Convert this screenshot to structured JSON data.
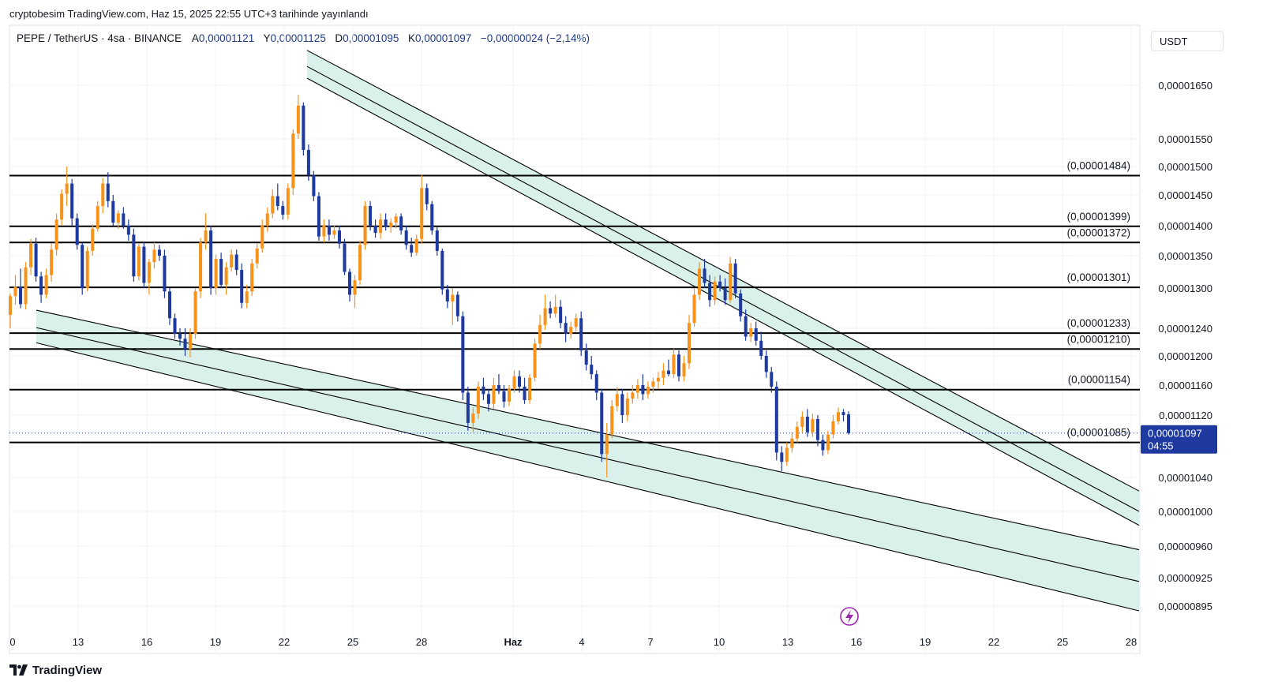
{
  "header": {
    "publish_text": "cryptobesim TradingView.com, Haz 15, 2025 22:55 UTC+3 tarihinde yayınlandı",
    "symbol_text": "PEPE / TetherUS · 4sa · BINANCE",
    "ohlc": {
      "open_label": "A",
      "open_value": "0,00001121",
      "high_label": "Y",
      "high_value": "0,00001125",
      "low_label": "D",
      "low_value": "0,00001095",
      "close_label": "K",
      "close_value": "0,00001097",
      "change_text": "−0,00000024 (−2,14%)"
    },
    "currency": "USDT"
  },
  "footer": {
    "brand": "TradingView"
  },
  "colors": {
    "up": "#f7931a",
    "down": "#1e3aa0",
    "channel_fill": "#d9f1ea",
    "price_tag_bg": "#1e3aa0",
    "level_line": "#000000"
  },
  "chart_data": {
    "type": "candlestick",
    "title": "PEPE / TetherUS · 4sa · BINANCE",
    "x_ticks": [
      "0",
      "13",
      "16",
      "19",
      "22",
      "25",
      "28",
      "Haz",
      "4",
      "7",
      "10",
      "13",
      "16",
      "19",
      "22",
      "25",
      "28"
    ],
    "y_ticks": [
      "0,00001650",
      "0,00001550",
      "0,00001500",
      "0,00001450",
      "0,00001400",
      "0,00001350",
      "0,00001300",
      "0,00001240",
      "0,00001200",
      "0,00001160",
      "0,00001120",
      "0,00001040",
      "0,00001000",
      "0,00000960",
      "0,00000925",
      "0,00000895"
    ],
    "y_tick_values": [
      1650,
      1550,
      1500,
      1450,
      1400,
      1350,
      1300,
      1240,
      1200,
      1160,
      1120,
      1040,
      1000,
      960,
      925,
      895
    ],
    "value_unit": "1e-8 USDT",
    "ylim": [
      875,
      1720
    ],
    "levels": [
      {
        "label": "(0,00001484)",
        "value": 1484
      },
      {
        "label": "(0,00001399)",
        "value": 1399
      },
      {
        "label": "(0,00001372)",
        "value": 1372
      },
      {
        "label": "(0,00001301)",
        "value": 1301
      },
      {
        "label": "(0,00001233)",
        "value": 1233
      },
      {
        "label": "(0,00001210)",
        "value": 1210
      },
      {
        "label": "(0,00001154)",
        "value": 1154
      },
      {
        "label": "(0,00001085)",
        "value": 1085
      }
    ],
    "current_price": {
      "value": 1097,
      "label": "0,00001097",
      "countdown": "04:55"
    },
    "channels": [
      {
        "name": "upper-descending-channel",
        "start_day": 22.3,
        "end_day": 28.1,
        "top": [
          1715,
          1024
        ],
        "middle": [
          1685,
          1000
        ],
        "bottom": [
          1663,
          984
        ]
      },
      {
        "name": "lower-descending-channel",
        "start_day": 11.4,
        "end_day": 28.1,
        "top": [
          1267,
          956
        ],
        "middle": [
          1241,
          921
        ],
        "bottom": [
          1219,
          890
        ]
      }
    ],
    "candles": [
      [
        1260,
        1292,
        1240,
        1288
      ],
      [
        1288,
        1320,
        1275,
        1302
      ],
      [
        1302,
        1330,
        1270,
        1276
      ],
      [
        1276,
        1340,
        1268,
        1332
      ],
      [
        1332,
        1378,
        1320,
        1370
      ],
      [
        1370,
        1380,
        1310,
        1318
      ],
      [
        1318,
        1325,
        1278,
        1290
      ],
      [
        1290,
        1330,
        1285,
        1320
      ],
      [
        1320,
        1370,
        1310,
        1360
      ],
      [
        1360,
        1420,
        1350,
        1410
      ],
      [
        1410,
        1460,
        1400,
        1452
      ],
      [
        1452,
        1500,
        1432,
        1470
      ],
      [
        1470,
        1478,
        1400,
        1412
      ],
      [
        1412,
        1420,
        1360,
        1368
      ],
      [
        1368,
        1372,
        1290,
        1300
      ],
      [
        1300,
        1365,
        1295,
        1358
      ],
      [
        1358,
        1402,
        1350,
        1395
      ],
      [
        1395,
        1440,
        1390,
        1432
      ],
      [
        1432,
        1480,
        1420,
        1470
      ],
      [
        1470,
        1490,
        1430,
        1440
      ],
      [
        1440,
        1450,
        1400,
        1405
      ],
      [
        1405,
        1425,
        1395,
        1420
      ],
      [
        1420,
        1430,
        1395,
        1400
      ],
      [
        1400,
        1410,
        1375,
        1385
      ],
      [
        1385,
        1395,
        1310,
        1318
      ],
      [
        1318,
        1370,
        1312,
        1365
      ],
      [
        1365,
        1372,
        1300,
        1308
      ],
      [
        1308,
        1345,
        1290,
        1340
      ],
      [
        1340,
        1372,
        1330,
        1360
      ],
      [
        1360,
        1368,
        1342,
        1350
      ],
      [
        1350,
        1360,
        1285,
        1295
      ],
      [
        1295,
        1300,
        1245,
        1255
      ],
      [
        1255,
        1262,
        1225,
        1232
      ],
      [
        1232,
        1240,
        1215,
        1225
      ],
      [
        1225,
        1240,
        1200,
        1210
      ],
      [
        1210,
        1240,
        1198,
        1232
      ],
      [
        1232,
        1300,
        1225,
        1295
      ],
      [
        1295,
        1380,
        1285,
        1372
      ],
      [
        1372,
        1420,
        1360,
        1392
      ],
      [
        1392,
        1400,
        1290,
        1300
      ],
      [
        1300,
        1352,
        1290,
        1345
      ],
      [
        1345,
        1355,
        1300,
        1305
      ],
      [
        1305,
        1340,
        1290,
        1332
      ],
      [
        1332,
        1360,
        1325,
        1352
      ],
      [
        1352,
        1360,
        1320,
        1328
      ],
      [
        1328,
        1338,
        1270,
        1278
      ],
      [
        1278,
        1305,
        1270,
        1295
      ],
      [
        1295,
        1345,
        1288,
        1338
      ],
      [
        1338,
        1370,
        1330,
        1362
      ],
      [
        1362,
        1410,
        1355,
        1400
      ],
      [
        1400,
        1430,
        1390,
        1420
      ],
      [
        1420,
        1460,
        1412,
        1448
      ],
      [
        1448,
        1470,
        1425,
        1432
      ],
      [
        1432,
        1440,
        1410,
        1418
      ],
      [
        1418,
        1470,
        1410,
        1462
      ],
      [
        1462,
        1568,
        1450,
        1560
      ],
      [
        1560,
        1632,
        1550,
        1612
      ],
      [
        1612,
        1618,
        1520,
        1530
      ],
      [
        1530,
        1540,
        1475,
        1485
      ],
      [
        1485,
        1492,
        1440,
        1448
      ],
      [
        1448,
        1455,
        1375,
        1382
      ],
      [
        1382,
        1410,
        1372,
        1400
      ],
      [
        1400,
        1410,
        1375,
        1385
      ],
      [
        1385,
        1400,
        1378,
        1392
      ],
      [
        1392,
        1400,
        1362,
        1370
      ],
      [
        1370,
        1378,
        1320,
        1325
      ],
      [
        1325,
        1330,
        1280,
        1290
      ],
      [
        1290,
        1320,
        1270,
        1312
      ],
      [
        1312,
        1375,
        1305,
        1368
      ],
      [
        1368,
        1440,
        1360,
        1432
      ],
      [
        1432,
        1440,
        1392,
        1400
      ],
      [
        1400,
        1410,
        1380,
        1388
      ],
      [
        1388,
        1420,
        1378,
        1410
      ],
      [
        1410,
        1420,
        1392,
        1398
      ],
      [
        1398,
        1412,
        1388,
        1405
      ],
      [
        1405,
        1420,
        1396,
        1415
      ],
      [
        1415,
        1420,
        1385,
        1392
      ],
      [
        1392,
        1400,
        1360,
        1368
      ],
      [
        1368,
        1380,
        1348,
        1355
      ],
      [
        1355,
        1385,
        1350,
        1378
      ],
      [
        1378,
        1485,
        1370,
        1462
      ],
      [
        1462,
        1470,
        1425,
        1435
      ],
      [
        1435,
        1440,
        1385,
        1392
      ],
      [
        1392,
        1398,
        1350,
        1358
      ],
      [
        1358,
        1362,
        1290,
        1298
      ],
      [
        1298,
        1305,
        1270,
        1280
      ],
      [
        1280,
        1300,
        1245,
        1290
      ],
      [
        1290,
        1295,
        1250,
        1258
      ],
      [
        1258,
        1265,
        1140,
        1150
      ],
      [
        1150,
        1158,
        1100,
        1110
      ],
      [
        1110,
        1130,
        1098,
        1122
      ],
      [
        1122,
        1165,
        1115,
        1158
      ],
      [
        1158,
        1170,
        1140,
        1148
      ],
      [
        1148,
        1155,
        1125,
        1135
      ],
      [
        1135,
        1170,
        1128,
        1160
      ],
      [
        1160,
        1175,
        1148,
        1152
      ],
      [
        1152,
        1160,
        1130,
        1138
      ],
      [
        1138,
        1160,
        1132,
        1155
      ],
      [
        1155,
        1180,
        1150,
        1172
      ],
      [
        1172,
        1180,
        1150,
        1158
      ],
      [
        1158,
        1170,
        1135,
        1140
      ],
      [
        1140,
        1175,
        1135,
        1170
      ],
      [
        1170,
        1225,
        1165,
        1218
      ],
      [
        1218,
        1260,
        1210,
        1245
      ],
      [
        1245,
        1290,
        1238,
        1270
      ],
      [
        1270,
        1280,
        1255,
        1262
      ],
      [
        1262,
        1290,
        1256,
        1272
      ],
      [
        1272,
        1282,
        1240,
        1248
      ],
      [
        1248,
        1258,
        1220,
        1232
      ],
      [
        1232,
        1250,
        1225,
        1242
      ],
      [
        1242,
        1262,
        1235,
        1255
      ],
      [
        1255,
        1265,
        1200,
        1208
      ],
      [
        1208,
        1218,
        1180,
        1188
      ],
      [
        1188,
        1200,
        1168,
        1175
      ],
      [
        1175,
        1180,
        1140,
        1150
      ],
      [
        1150,
        1155,
        1060,
        1070
      ],
      [
        1070,
        1110,
        1040,
        1095
      ],
      [
        1095,
        1140,
        1090,
        1132
      ],
      [
        1132,
        1158,
        1125,
        1148
      ],
      [
        1148,
        1155,
        1110,
        1120
      ],
      [
        1120,
        1150,
        1112,
        1142
      ],
      [
        1142,
        1160,
        1135,
        1150
      ],
      [
        1150,
        1168,
        1142,
        1160
      ],
      [
        1160,
        1175,
        1140,
        1148
      ],
      [
        1148,
        1165,
        1142,
        1158
      ],
      [
        1158,
        1170,
        1150,
        1165
      ],
      [
        1165,
        1178,
        1155,
        1170
      ],
      [
        1170,
        1190,
        1160,
        1180
      ],
      [
        1180,
        1195,
        1172,
        1175
      ],
      [
        1175,
        1210,
        1170,
        1202
      ],
      [
        1202,
        1208,
        1165,
        1172
      ],
      [
        1172,
        1200,
        1165,
        1190
      ],
      [
        1190,
        1260,
        1182,
        1248
      ],
      [
        1248,
        1300,
        1242,
        1290
      ],
      [
        1290,
        1340,
        1282,
        1330
      ],
      [
        1330,
        1345,
        1300,
        1308
      ],
      [
        1308,
        1320,
        1272,
        1282
      ],
      [
        1282,
        1318,
        1275,
        1310
      ],
      [
        1310,
        1320,
        1295,
        1300
      ],
      [
        1300,
        1315,
        1275,
        1282
      ],
      [
        1282,
        1348,
        1278,
        1338
      ],
      [
        1338,
        1345,
        1285,
        1292
      ],
      [
        1292,
        1298,
        1250,
        1258
      ],
      [
        1258,
        1268,
        1222,
        1228
      ],
      [
        1228,
        1248,
        1220,
        1240
      ],
      [
        1240,
        1250,
        1215,
        1222
      ],
      [
        1222,
        1235,
        1195,
        1200
      ],
      [
        1200,
        1208,
        1170,
        1178
      ],
      [
        1178,
        1185,
        1150,
        1158
      ],
      [
        1158,
        1165,
        1062,
        1072
      ],
      [
        1072,
        1080,
        1048,
        1060
      ],
      [
        1060,
        1085,
        1055,
        1078
      ],
      [
        1078,
        1098,
        1072,
        1090
      ],
      [
        1090,
        1112,
        1085,
        1105
      ],
      [
        1105,
        1125,
        1098,
        1118
      ],
      [
        1118,
        1128,
        1092,
        1098
      ],
      [
        1098,
        1122,
        1092,
        1115
      ],
      [
        1115,
        1120,
        1080,
        1088
      ],
      [
        1088,
        1095,
        1068,
        1075
      ],
      [
        1075,
        1100,
        1070,
        1095
      ],
      [
        1095,
        1120,
        1090,
        1112
      ],
      [
        1112,
        1130,
        1108,
        1124
      ],
      [
        1124,
        1128,
        1112,
        1120
      ],
      [
        1121,
        1125,
        1095,
        1097
      ]
    ]
  }
}
